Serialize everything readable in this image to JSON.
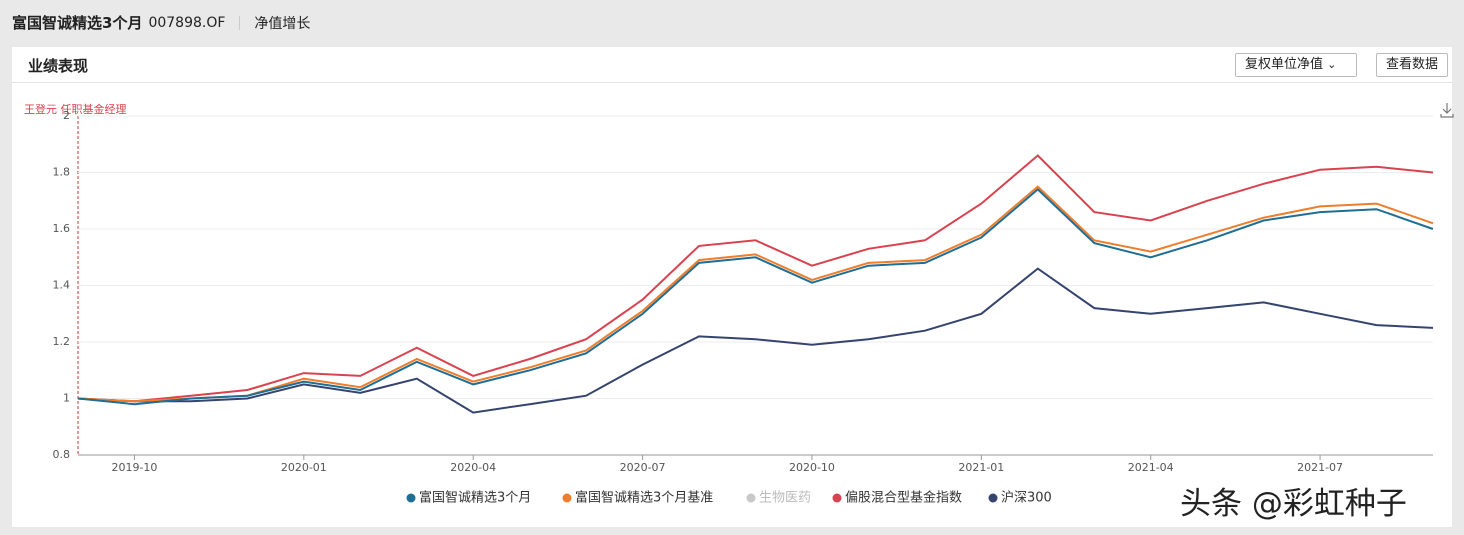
{
  "header": {
    "title": "富国智诚精选3个月",
    "code": "007898.OF",
    "tab": "净值增长"
  },
  "panel": {
    "title": "业绩表现",
    "dropdown": "复权单位净值",
    "button": "查看数据"
  },
  "watermark": "头条 @彩虹种子",
  "chart_data": {
    "type": "line",
    "annotation": "王登元 任职基金经理",
    "x": [
      "2019-09",
      "2019-10",
      "2019-11",
      "2019-12",
      "2020-01",
      "2020-02",
      "2020-03",
      "2020-04",
      "2020-05",
      "2020-06",
      "2020-07",
      "2020-08",
      "2020-09",
      "2020-10",
      "2020-11",
      "2020-12",
      "2021-01",
      "2021-02",
      "2021-03",
      "2021-04",
      "2021-05",
      "2021-06",
      "2021-07",
      "2021-08",
      "2021-09"
    ],
    "xlim": [
      "2019-09",
      "2021-09"
    ],
    "xticks": [
      "2019-10",
      "2020-01",
      "2020-04",
      "2020-07",
      "2020-10",
      "2021-01",
      "2021-04",
      "2021-07"
    ],
    "ylim": [
      0.8,
      2
    ],
    "yticks": [
      0.8,
      1,
      1.2,
      1.4,
      1.6,
      1.8,
      2
    ],
    "grid": true,
    "series": [
      {
        "name": "富国智诚精选3个月",
        "color": "#1f6e94",
        "values": [
          1.0,
          0.98,
          1.0,
          1.01,
          1.06,
          1.03,
          1.13,
          1.05,
          1.1,
          1.16,
          1.3,
          1.48,
          1.5,
          1.41,
          1.47,
          1.48,
          1.57,
          1.74,
          1.55,
          1.5,
          1.56,
          1.63,
          1.66,
          1.67,
          1.6
        ]
      },
      {
        "name": "富国智诚精选3个月基准",
        "color": "#ef7d2b",
        "values": [
          1.0,
          0.99,
          1.0,
          1.01,
          1.07,
          1.04,
          1.14,
          1.06,
          1.11,
          1.17,
          1.31,
          1.49,
          1.51,
          1.42,
          1.48,
          1.49,
          1.58,
          1.75,
          1.56,
          1.52,
          1.58,
          1.64,
          1.68,
          1.69,
          1.62
        ]
      },
      {
        "name": "偏股混合型基金指数",
        "color": "#d9424f",
        "values": [
          1.0,
          0.99,
          1.01,
          1.03,
          1.09,
          1.08,
          1.18,
          1.08,
          1.14,
          1.21,
          1.35,
          1.54,
          1.56,
          1.47,
          1.53,
          1.56,
          1.69,
          1.86,
          1.66,
          1.63,
          1.7,
          1.76,
          1.81,
          1.82,
          1.8
        ]
      },
      {
        "name": "沪深300",
        "color": "#34446f",
        "values": [
          1.0,
          0.99,
          0.99,
          1.0,
          1.05,
          1.02,
          1.07,
          0.95,
          0.98,
          1.01,
          1.12,
          1.22,
          1.21,
          1.19,
          1.21,
          1.24,
          1.3,
          1.46,
          1.32,
          1.3,
          1.32,
          1.34,
          1.3,
          1.26,
          1.25
        ]
      }
    ],
    "inactive_legend": [
      {
        "name": "生物医药",
        "color": "#c8c8c8"
      }
    ],
    "legend_order": [
      "series.0",
      "series.1",
      "inactive_legend.0",
      "series.2",
      "series.3"
    ]
  }
}
